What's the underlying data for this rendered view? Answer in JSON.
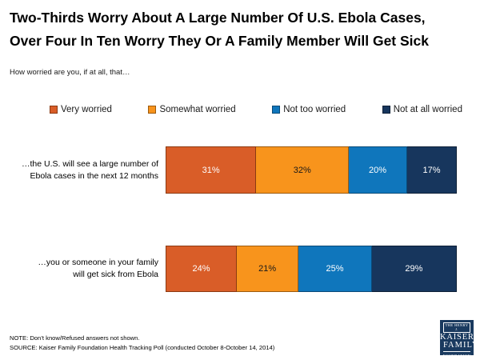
{
  "header": {
    "title_lines": [
      "Two-Thirds Worry About A Large Number Of U.S. Ebola Cases,",
      "Over Four In Ten Worry They Or A Family Member Will Get Sick"
    ],
    "subtitle": "How worried are you, if at all, that…"
  },
  "legend": {
    "items": [
      {
        "label": "Very worried",
        "color": "#D95D28",
        "border": "#8C3A12",
        "text_color": "#FFFFFF"
      },
      {
        "label": "Somewhat worried",
        "color": "#F8941C",
        "border": "#9C5A0E",
        "text_color": "#1A1A1A"
      },
      {
        "label": "Not too worried",
        "color": "#0F76BC",
        "border": "#0A4A77",
        "text_color": "#FFFFFF"
      },
      {
        "label": "Not at all worried",
        "color": "#17365D",
        "border": "#0D1F36",
        "text_color": "#FFFFFF"
      }
    ]
  },
  "rows": [
    {
      "label_lines": [
        "…the U.S. will see a large number of",
        "Ebola cases in the next 12 months"
      ],
      "values": [
        31,
        32,
        20,
        17
      ],
      "labels": [
        "31%",
        "32%",
        "20%",
        "17%"
      ]
    },
    {
      "label_lines": [
        "…you or someone in your family",
        "will get sick from Ebola"
      ],
      "values": [
        24,
        21,
        25,
        29
      ],
      "labels": [
        "24%",
        "21%",
        "25%",
        "29%"
      ]
    }
  ],
  "footer": {
    "note": "NOTE: Don’t know/Refused answers not shown.",
    "source": "SOURCE: Kaiser Family Foundation Health Tracking Poll (conducted October 8-October 14, 2014)"
  },
  "logo": {
    "bg": "#1A3A5F",
    "line1": "THE HENRY J.",
    "line2": "KAISER",
    "line3": "FAMILY",
    "line4": "FOUNDATION"
  },
  "chart_data": {
    "type": "bar",
    "stacked": true,
    "orientation": "horizontal",
    "unit": "percent",
    "xlim": [
      0,
      100
    ],
    "grid": false,
    "legend_position": "top",
    "title": "Two-Thirds Worry About A Large Number Of U.S. Ebola Cases, Over Four In Ten Worry They Or A Family Member Will Get Sick",
    "subtitle": "How worried are you, if at all, that…",
    "categories": [
      "…the U.S. will see a large number of Ebola cases in the next 12 months",
      "…you or someone in your family will get sick from Ebola"
    ],
    "series": [
      {
        "name": "Very worried",
        "color": "#D95D28",
        "values": [
          31,
          24
        ]
      },
      {
        "name": "Somewhat worried",
        "color": "#F8941C",
        "values": [
          32,
          21
        ]
      },
      {
        "name": "Not too worried",
        "color": "#0F76BC",
        "values": [
          20,
          25
        ]
      },
      {
        "name": "Not at all worried",
        "color": "#17365D",
        "values": [
          17,
          29
        ]
      }
    ],
    "note": "NOTE: Don’t know/Refused answers not shown.",
    "source": "SOURCE: Kaiser Family Foundation Health Tracking Poll (conducted October 8-October 14, 2014)"
  }
}
